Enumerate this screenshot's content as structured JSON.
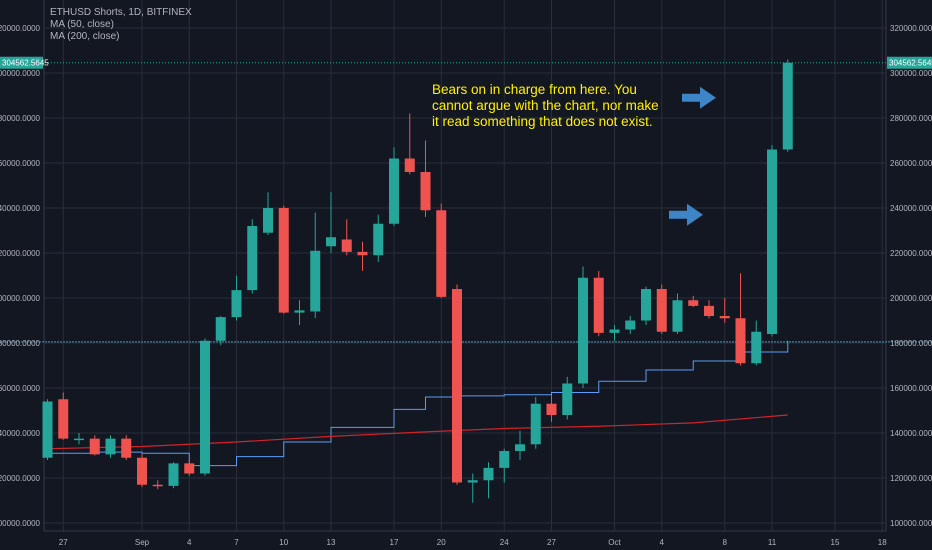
{
  "chart_data": {
    "type": "candlestick",
    "title": "ETHUSD Shorts, 1D, BITFINEX",
    "indicators": [
      {
        "name": "MA (50, close)",
        "color": "#5b9cf6"
      },
      {
        "name": "MA (200, close)",
        "color": "#d0242b"
      }
    ],
    "ylim": [
      100000,
      325000
    ],
    "y_ticks": [
      "100000.0000",
      "120000.0000",
      "140000.0000",
      "160000.0000",
      "180000.0000",
      "200000.0000",
      "220000.0000",
      "240000.0000",
      "260000.0000",
      "280000.0000",
      "300000.0000",
      "320000.0000"
    ],
    "y_tick_values": [
      100000,
      120000,
      140000,
      160000,
      180000,
      200000,
      220000,
      240000,
      260000,
      280000,
      300000,
      320000
    ],
    "x_ticks": [
      "27",
      "Sep",
      "4",
      "7",
      "10",
      "13",
      "17",
      "20",
      "24",
      "27",
      "Oct",
      "4",
      "8",
      "11",
      "15",
      "18"
    ],
    "last_price_label": "304562.5645",
    "last_price": 304562.5645,
    "horizontal_line": 180500,
    "colors": {
      "up": "#26a69a",
      "down": "#ef5350",
      "background": "#131722",
      "grid": "#2a2e39",
      "text": "#b2b5be"
    },
    "candles": [
      {
        "date": "Aug 26",
        "open": 129000,
        "high": 155000,
        "low": 128000,
        "close": 154000
      },
      {
        "date": "Aug 27",
        "open": 155000,
        "high": 158000,
        "low": 137000,
        "close": 137500
      },
      {
        "date": "Aug 28",
        "open": 137500,
        "high": 140000,
        "low": 135000,
        "close": 137500
      },
      {
        "date": "Aug 29",
        "open": 137500,
        "high": 139000,
        "low": 130000,
        "close": 130500
      },
      {
        "date": "Aug 30",
        "open": 130500,
        "high": 139000,
        "low": 129000,
        "close": 137500
      },
      {
        "date": "Aug 31",
        "open": 137500,
        "high": 139000,
        "low": 128000,
        "close": 129000
      },
      {
        "date": "Sep 1",
        "open": 129000,
        "high": 131000,
        "low": 116000,
        "close": 117000
      },
      {
        "date": "Sep 2",
        "open": 117000,
        "high": 119000,
        "low": 115000,
        "close": 116500
      },
      {
        "date": "Sep 3",
        "open": 116500,
        "high": 127000,
        "low": 115500,
        "close": 126500
      },
      {
        "date": "Sep 4",
        "open": 126500,
        "high": 128000,
        "low": 121000,
        "close": 122000
      },
      {
        "date": "Sep 5",
        "open": 122000,
        "high": 182000,
        "low": 121000,
        "close": 181000
      },
      {
        "date": "Sep 6",
        "open": 181000,
        "high": 192000,
        "low": 179000,
        "close": 191500
      },
      {
        "date": "Sep 7",
        "open": 191500,
        "high": 210000,
        "low": 190000,
        "close": 203500
      },
      {
        "date": "Sep 8",
        "open": 203500,
        "high": 235000,
        "low": 202000,
        "close": 232000
      },
      {
        "date": "Sep 9",
        "open": 229000,
        "high": 247000,
        "low": 228000,
        "close": 240000
      },
      {
        "date": "Sep 10",
        "open": 240000,
        "high": 241000,
        "low": 193000,
        "close": 193500
      },
      {
        "date": "Sep 11",
        "open": 193500,
        "high": 199000,
        "low": 188000,
        "close": 194500
      },
      {
        "date": "Sep 12",
        "open": 194000,
        "high": 238000,
        "low": 191000,
        "close": 221000
      },
      {
        "date": "Sep 13",
        "open": 223000,
        "high": 247000,
        "low": 220000,
        "close": 227000
      },
      {
        "date": "Sep 14",
        "open": 226000,
        "high": 235000,
        "low": 219000,
        "close": 220500
      },
      {
        "date": "Sep 15",
        "open": 220500,
        "high": 225000,
        "low": 212000,
        "close": 219000
      },
      {
        "date": "Sep 16",
        "open": 219000,
        "high": 237000,
        "low": 216000,
        "close": 233000
      },
      {
        "date": "Sep 17",
        "open": 233000,
        "high": 267000,
        "low": 232000,
        "close": 262000
      },
      {
        "date": "Sep 18",
        "open": 262000,
        "high": 282000,
        "low": 255000,
        "close": 256000
      },
      {
        "date": "Sep 19",
        "open": 256000,
        "high": 270000,
        "low": 236000,
        "close": 239000
      },
      {
        "date": "Sep 20",
        "open": 239000,
        "high": 242000,
        "low": 200000,
        "close": 200500
      },
      {
        "date": "Sep 21",
        "open": 204000,
        "high": 206000,
        "low": 117000,
        "close": 118000
      },
      {
        "date": "Sep 22",
        "open": 118000,
        "high": 122000,
        "low": 109000,
        "close": 119000
      },
      {
        "date": "Sep 23",
        "open": 119000,
        "high": 127000,
        "low": 111000,
        "close": 124500
      },
      {
        "date": "Sep 24",
        "open": 124500,
        "high": 133000,
        "low": 118000,
        "close": 132000
      },
      {
        "date": "Sep 25",
        "open": 132000,
        "high": 141000,
        "low": 128000,
        "close": 135000
      },
      {
        "date": "Sep 26",
        "open": 135000,
        "high": 156000,
        "low": 133000,
        "close": 153000
      },
      {
        "date": "Sep 27",
        "open": 153000,
        "high": 157000,
        "low": 145000,
        "close": 148000
      },
      {
        "date": "Sep 28",
        "open": 148000,
        "high": 165000,
        "low": 146000,
        "close": 162000
      },
      {
        "date": "Sep 29",
        "open": 162000,
        "high": 214000,
        "low": 160000,
        "close": 209000
      },
      {
        "date": "Sep 30",
        "open": 209000,
        "high": 212000,
        "low": 183000,
        "close": 184500
      },
      {
        "date": "Oct 1",
        "open": 184500,
        "high": 188000,
        "low": 181000,
        "close": 186000
      },
      {
        "date": "Oct 2",
        "open": 186000,
        "high": 192000,
        "low": 184000,
        "close": 190000
      },
      {
        "date": "Oct 3",
        "open": 190000,
        "high": 205000,
        "low": 188000,
        "close": 204000
      },
      {
        "date": "Oct 4",
        "open": 204000,
        "high": 206000,
        "low": 184000,
        "close": 185000
      },
      {
        "date": "Oct 5",
        "open": 185000,
        "high": 202000,
        "low": 184000,
        "close": 199000
      },
      {
        "date": "Oct 6",
        "open": 199000,
        "high": 201000,
        "low": 196000,
        "close": 196500
      },
      {
        "date": "Oct 7",
        "open": 196500,
        "high": 199000,
        "low": 191000,
        "close": 192000
      },
      {
        "date": "Oct 8",
        "open": 192000,
        "high": 200000,
        "low": 189000,
        "close": 191000
      },
      {
        "date": "Oct 9",
        "open": 191000,
        "high": 211000,
        "low": 170000,
        "close": 171000
      },
      {
        "date": "Oct 10",
        "open": 171000,
        "high": 190000,
        "low": 170000,
        "close": 185000
      },
      {
        "date": "Oct 11",
        "open": 184000,
        "high": 268000,
        "low": 183000,
        "close": 266000
      },
      {
        "date": "Oct 12",
        "open": 266000,
        "high": 306000,
        "low": 265000,
        "close": 304562.5645
      }
    ],
    "ma50": [
      {
        "date": "Aug 26",
        "value": 131000
      },
      {
        "date": "Aug 29",
        "value": 131500
      },
      {
        "date": "Sep 1",
        "value": 131000
      },
      {
        "date": "Sep 4",
        "value": 125500
      },
      {
        "date": "Sep 7",
        "value": 129500
      },
      {
        "date": "Sep 10",
        "value": 136000
      },
      {
        "date": "Sep 13",
        "value": 142500
      },
      {
        "date": "Sep 17",
        "value": 150500
      },
      {
        "date": "Sep 19",
        "value": 156000
      },
      {
        "date": "Sep 21",
        "value": 156500
      },
      {
        "date": "Sep 24",
        "value": 157000
      },
      {
        "date": "Sep 27",
        "value": 158000
      },
      {
        "date": "Sep 30",
        "value": 163000
      },
      {
        "date": "Oct 3",
        "value": 168000
      },
      {
        "date": "Oct 6",
        "value": 172000
      },
      {
        "date": "Oct 9",
        "value": 176000
      },
      {
        "date": "Oct 12",
        "value": 181000
      }
    ],
    "ma200": [
      {
        "date": "Aug 26",
        "value": 133000
      },
      {
        "date": "Sep 1",
        "value": 134000
      },
      {
        "date": "Sep 7",
        "value": 136000
      },
      {
        "date": "Sep 13",
        "value": 138500
      },
      {
        "date": "Sep 19",
        "value": 140500
      },
      {
        "date": "Sep 24",
        "value": 142000
      },
      {
        "date": "Sep 30",
        "value": 143000
      },
      {
        "date": "Oct 6",
        "value": 144500
      },
      {
        "date": "Oct 12",
        "value": 148000
      }
    ],
    "annotation": [
      "Bears on in charge from here. You",
      "cannot argue with the chart, nor make",
      "it read something that does not exist."
    ],
    "arrows": [
      {
        "label": "arrow-upper",
        "target_price": 289000,
        "color": "#3d85c6"
      },
      {
        "label": "arrow-lower",
        "target_price": 237000,
        "color": "#3d85c6"
      }
    ]
  }
}
